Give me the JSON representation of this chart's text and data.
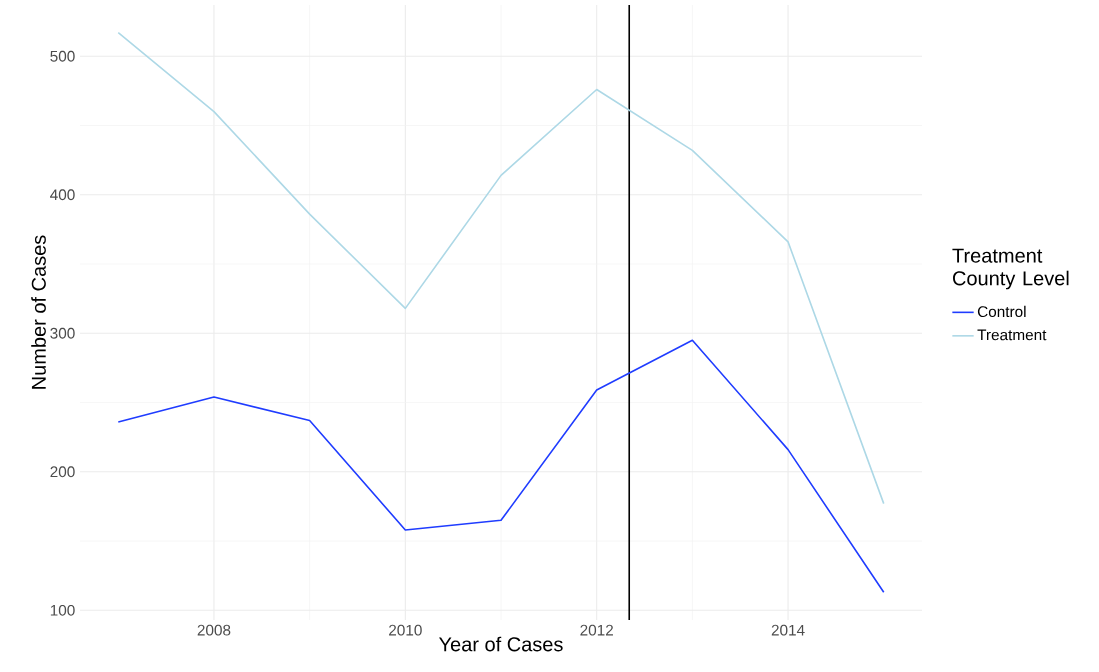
{
  "chart_data": {
    "type": "line",
    "xlabel": "Year of Cases",
    "ylabel": "Number of Cases",
    "legend_title": "Treatment County Level",
    "x": [
      2007,
      2008,
      2009,
      2010,
      2011,
      2012,
      2013,
      2014,
      2015
    ],
    "series": [
      {
        "name": "Control",
        "color": "#1f3cff",
        "values": [
          236,
          254,
          237,
          158,
          165,
          259,
          295,
          216,
          113
        ]
      },
      {
        "name": "Treatment",
        "color": "#add8e6",
        "values": [
          517,
          460,
          386,
          318,
          414,
          476,
          432,
          366,
          177
        ]
      }
    ],
    "xlim": [
      2006.6,
      2015.4
    ],
    "ylim": [
      93,
      537
    ],
    "xticks": [
      2008,
      2010,
      2012,
      2014
    ],
    "yticks": [
      100,
      200,
      300,
      400,
      500
    ],
    "ref_lines": [
      {
        "axis": "x",
        "value": 2012.34,
        "color": "#000000"
      }
    ],
    "grid": true,
    "legend": "right"
  }
}
